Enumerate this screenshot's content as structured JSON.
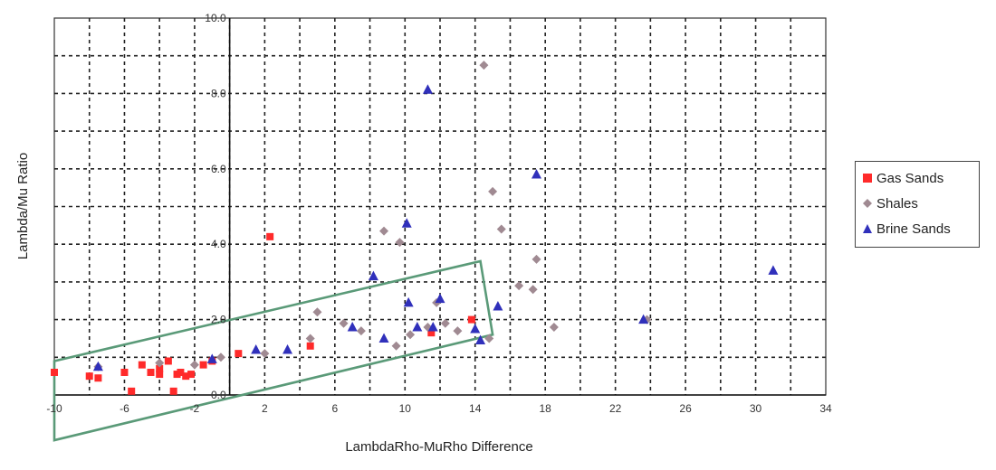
{
  "chart_data": {
    "type": "scatter",
    "title": "",
    "xlabel": "LambdaRho-MuRho Difference",
    "ylabel": "Lambda/Mu Ratio",
    "xlim": [
      -10,
      34
    ],
    "ylim": [
      0,
      10
    ],
    "x_ticks": [
      "-10",
      "-6",
      "-2",
      "2",
      "6",
      "10",
      "14",
      "18",
      "22",
      "26",
      "30",
      "34"
    ],
    "y_ticks": [
      "0.0",
      "2.0",
      "4.0",
      "6.0",
      "8.0",
      "10.0"
    ],
    "grid": true,
    "legend_position": "right",
    "series": [
      {
        "name": "Gas Sands",
        "marker": "square",
        "color": "#ff2a2a",
        "points": [
          [
            -10,
            0.6
          ],
          [
            -8,
            0.5
          ],
          [
            -7.5,
            0.45
          ],
          [
            -6,
            0.6
          ],
          [
            -5.6,
            0.1
          ],
          [
            -5,
            0.8
          ],
          [
            -4.5,
            0.6
          ],
          [
            -4,
            0.55
          ],
          [
            -4,
            0.7
          ],
          [
            -3.5,
            0.9
          ],
          [
            -3.2,
            0.1
          ],
          [
            -3,
            0.55
          ],
          [
            -2.8,
            0.6
          ],
          [
            -2.5,
            0.5
          ],
          [
            -2.2,
            0.55
          ],
          [
            -1.5,
            0.8
          ],
          [
            -1,
            0.9
          ],
          [
            0.5,
            1.1
          ],
          [
            2.3,
            4.2
          ],
          [
            4.6,
            1.3
          ],
          [
            11.5,
            1.65
          ],
          [
            13.8,
            2.0
          ]
        ]
      },
      {
        "name": "Shales",
        "marker": "diamond",
        "color": "#a08a92",
        "points": [
          [
            -7.5,
            0.75
          ],
          [
            -4,
            0.85
          ],
          [
            -2,
            0.8
          ],
          [
            -0.5,
            1.0
          ],
          [
            2,
            1.1
          ],
          [
            4.6,
            1.5
          ],
          [
            5,
            2.2
          ],
          [
            6.5,
            1.9
          ],
          [
            7.5,
            1.7
          ],
          [
            8.8,
            4.35
          ],
          [
            9.5,
            1.3
          ],
          [
            9.7,
            4.05
          ],
          [
            10.3,
            1.6
          ],
          [
            11.3,
            1.8
          ],
          [
            11.8,
            2.45
          ],
          [
            12.3,
            1.9
          ],
          [
            13,
            1.7
          ],
          [
            14.5,
            8.75
          ],
          [
            14.8,
            1.5
          ],
          [
            15,
            5.4
          ],
          [
            15.5,
            4.4
          ],
          [
            16.5,
            2.9
          ],
          [
            17.3,
            2.8
          ],
          [
            17.5,
            3.6
          ],
          [
            18.5,
            1.8
          ],
          [
            23.8,
            2.0
          ]
        ]
      },
      {
        "name": "Brine Sands",
        "marker": "triangle",
        "color": "#3030bb",
        "points": [
          [
            -7.5,
            0.75
          ],
          [
            -1,
            0.95
          ],
          [
            1.5,
            1.2
          ],
          [
            3.3,
            1.2
          ],
          [
            7,
            1.8
          ],
          [
            8.2,
            3.15
          ],
          [
            8.8,
            1.5
          ],
          [
            10.1,
            4.55
          ],
          [
            10.2,
            2.45
          ],
          [
            10.7,
            1.8
          ],
          [
            11.3,
            8.1
          ],
          [
            12,
            2.55
          ],
          [
            11.6,
            1.8
          ],
          [
            14,
            1.75
          ],
          [
            14.3,
            1.45
          ],
          [
            15.3,
            2.35
          ],
          [
            17.5,
            5.85
          ],
          [
            23.6,
            2.0
          ],
          [
            31,
            3.3
          ]
        ]
      }
    ],
    "annotations": [
      {
        "type": "polygon",
        "color": "#5a9a78",
        "points": [
          [
            -10,
            0.9
          ],
          [
            14.3,
            3.55
          ],
          [
            15,
            1.6
          ],
          [
            -10,
            -1.2
          ]
        ]
      }
    ]
  }
}
